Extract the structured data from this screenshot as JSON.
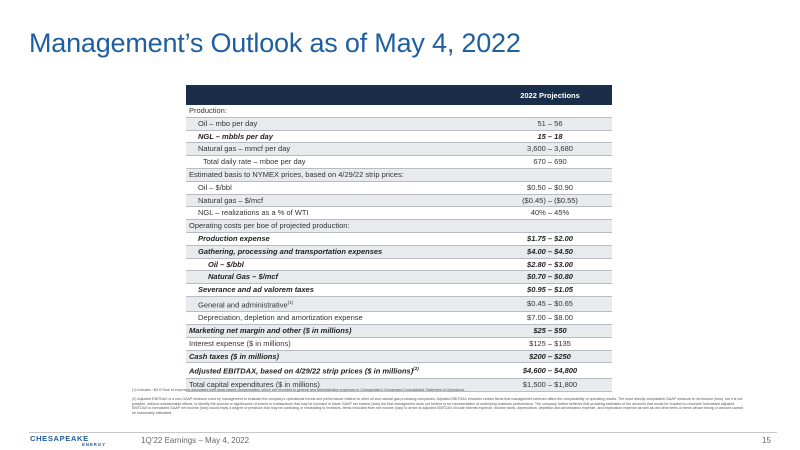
{
  "slide": {
    "title": "Management’s Outlook as of May 4, 2022",
    "footer_text": "1Q’22 Earnings – May 4, 2022",
    "page_number": "15",
    "logo_name": "CHESAPEAKE",
    "logo_sub": "ENERGY"
  },
  "table": {
    "header": "2022 Projections",
    "rows": [
      {
        "label": "Production:",
        "value": "",
        "style": "plain",
        "indent": 0
      },
      {
        "label": "Oil – mbo per day",
        "value": "51 – 56",
        "style": "shade",
        "indent": 1
      },
      {
        "label": "NGL – mbbls per day",
        "value": "15 – 18",
        "style": "bi",
        "indent": 1
      },
      {
        "label": "Natural gas – mmcf per day",
        "value": "3,600 – 3,680",
        "style": "shade",
        "indent": 1
      },
      {
        "label": "Total daily rate – mboe per day",
        "value": "670 – 690",
        "style": "plain",
        "indent": 2
      },
      {
        "label": "Estimated basis to NYMEX prices, based on 4/29/22 strip prices:",
        "value": "",
        "style": "shade",
        "indent": 0
      },
      {
        "label": "Oil – $/bbl",
        "value": "$0.50 – $0.90",
        "style": "plain",
        "indent": 1
      },
      {
        "label": "Natural gas – $/mcf",
        "value": "($0.45) – ($0.55)",
        "style": "shade",
        "indent": 1
      },
      {
        "label": "NGL – realizations as a % of WTI",
        "value": "40% – 45%",
        "style": "plain",
        "indent": 1
      },
      {
        "label": "Operating costs per boe of projected production:",
        "value": "",
        "style": "shade",
        "indent": 0
      },
      {
        "label": "Production expense",
        "value": "$1.75 – $2.00",
        "style": "bi",
        "indent": 1
      },
      {
        "label": "Gathering, processing and transportation expenses",
        "value": "$4.00 – $4.50",
        "style": "bi-shade",
        "indent": 1
      },
      {
        "label": "Oil – $/bbl",
        "value": "$2.80 – $3.00",
        "style": "bi",
        "indent": 3
      },
      {
        "label": "Natural Gas – $/mcf",
        "value": "$0.70 – $0.80",
        "style": "bi-shade",
        "indent": 3
      },
      {
        "label": "Severance and ad valorem taxes",
        "value": "$0.95 – $1.05",
        "style": "bi",
        "indent": 1
      },
      {
        "label": "General and administrative",
        "sup": "(1)",
        "value": "$0.45 – $0.65",
        "style": "shade",
        "indent": 1
      },
      {
        "label": "Depreciation, depletion and amortization expense",
        "value": "$7.00 – $8.00",
        "style": "plain",
        "indent": 1
      },
      {
        "label": "Marketing net margin and other ($ in millions)",
        "value": "$25 – $50",
        "style": "bi-shade-top",
        "indent": 0
      },
      {
        "label": "Interest expense ($ in millions)",
        "value": "$125 – $135",
        "style": "plain",
        "indent": 0
      },
      {
        "label": "Cash taxes ($ in millions)",
        "value": "$200 – $250",
        "style": "bi-shade",
        "indent": 0
      },
      {
        "label": "Adjusted EBITDAX, based on 4/29/22 strip prices ($ in millions)",
        "sup": "(2)",
        "value": "$4,600 – $4,800",
        "style": "bi",
        "indent": 0
      },
      {
        "label": "Total capital expenditures ($ in millions)",
        "value": "$1,500 – $1,800",
        "style": "shade",
        "indent": 0
      }
    ]
  },
  "footnotes": [
    "(1)  Includes ~$0.07/boe of expenses associated with stock-based compensation, which are recorded in general and administrative expenses in Chesapeake’s Condensed Consolidated Statement of Operations.",
    "(2)  Adjusted EBITDAX is a non-GAAP measure used by management to evaluate the company’s operational trends and performance relative to other oil and natural gas producing companies. Adjusted EBITDAX excludes certain items that management believes affect the comparability of operating results. The most directly comparable GAAP measure is net income (loss), but it is not possible, without unreasonable efforts, to identify the amount or significance of events or transactions that may be included in future GAAP net income (loss) but that management does not believe to be representative of underlying business performance. The company further believes that providing estimates of the amounts that would be required to reconcile forecasted adjusted EBITDAX to forecasted GAAP net income (loss) would imply a degree of precision that may be confusing or misleading to investors. Items excluded from net income (loss) to arrive at adjusted EBITDAX include interest expense, income taxes, depreciation, depletion and amortization expense, and exploration expense as well as one-time items or items whose timing or amount cannot be reasonably estimated."
  ]
}
